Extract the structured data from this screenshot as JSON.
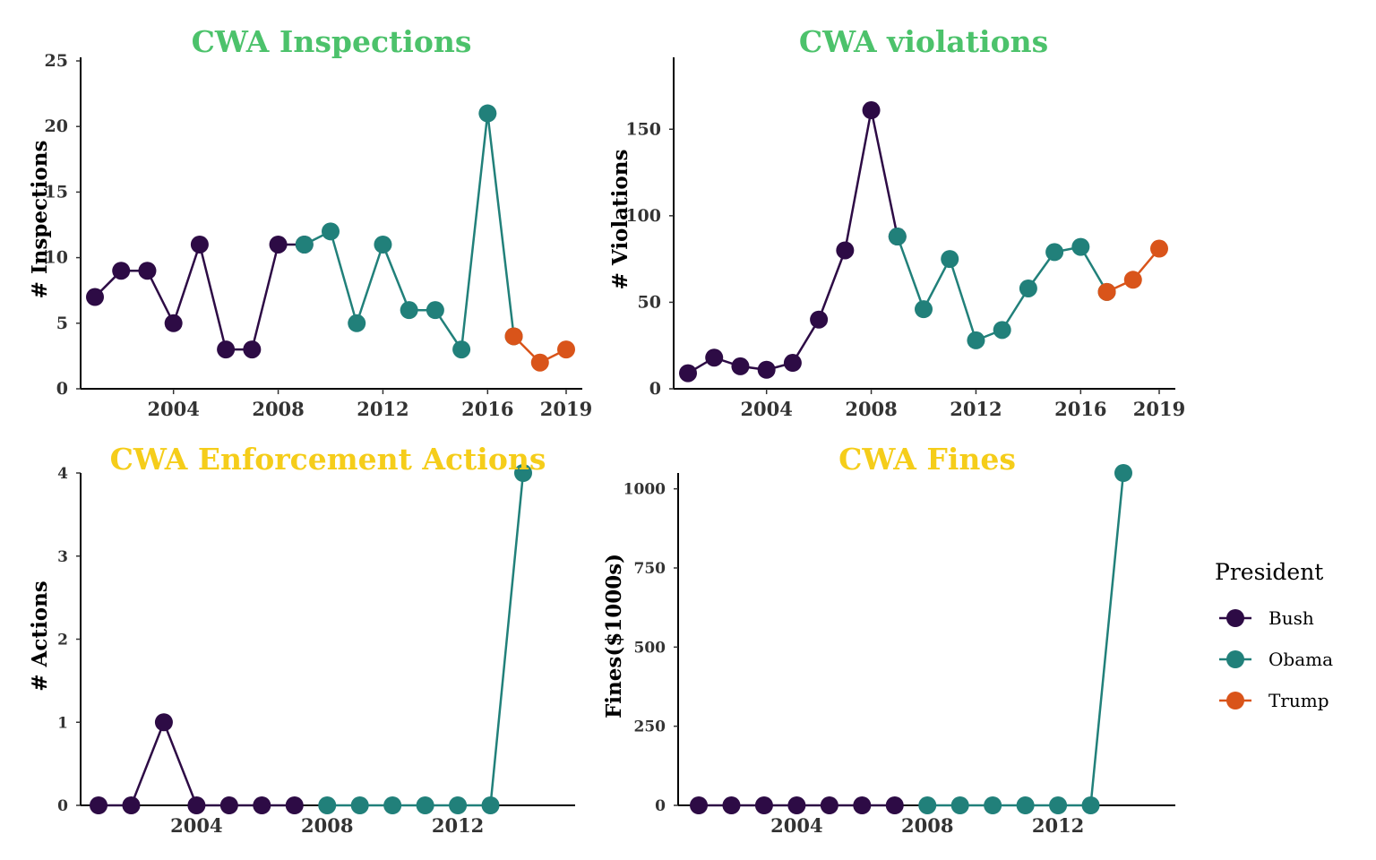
{
  "colors": {
    "Bush": "#2d0b45",
    "Obama": "#21807a",
    "Trump": "#d9541a"
  },
  "legend": {
    "title": "President",
    "items": [
      "Bush",
      "Obama",
      "Trump"
    ]
  },
  "chart_data": [
    {
      "type": "line",
      "title": "CWA Inspections",
      "title_color": "#4cc26b",
      "xlabel": "",
      "ylabel": "# Inspections",
      "xlim": [
        2001,
        2019
      ],
      "ylim": [
        0,
        25
      ],
      "xticks": [
        2004,
        2008,
        2012,
        2016,
        2019
      ],
      "yticks": [
        0,
        5,
        10,
        15,
        20,
        25
      ],
      "series": [
        {
          "name": "Bush",
          "x": [
            2001,
            2002,
            2003,
            2004,
            2005,
            2006,
            2007,
            2008,
            2009
          ],
          "y": [
            7,
            9,
            9,
            5,
            11,
            3,
            3,
            11,
            11
          ]
        },
        {
          "name": "Obama",
          "x": [
            2009,
            2010,
            2011,
            2012,
            2013,
            2014,
            2015,
            2016,
            2017
          ],
          "y": [
            11,
            12,
            5,
            11,
            6,
            6,
            3,
            21,
            4
          ]
        },
        {
          "name": "Trump",
          "x": [
            2017,
            2018,
            2019
          ],
          "y": [
            4,
            2,
            3
          ]
        }
      ]
    },
    {
      "type": "line",
      "title": "CWA violations",
      "title_color": "#4cc26b",
      "xlabel": "",
      "ylabel": "# Violations",
      "xlim": [
        2001,
        2019
      ],
      "ylim": [
        0,
        190
      ],
      "xticks": [
        2004,
        2008,
        2012,
        2016,
        2019
      ],
      "yticks": [
        0,
        50,
        100,
        150
      ],
      "series": [
        {
          "name": "Bush",
          "x": [
            2001,
            2002,
            2003,
            2004,
            2005,
            2006,
            2007,
            2008,
            2009
          ],
          "y": [
            9,
            18,
            13,
            11,
            15,
            40,
            80,
            161,
            88
          ]
        },
        {
          "name": "Obama",
          "x": [
            2009,
            2010,
            2011,
            2012,
            2013,
            2014,
            2015,
            2016,
            2017
          ],
          "y": [
            88,
            46,
            75,
            28,
            34,
            58,
            79,
            82,
            56
          ]
        },
        {
          "name": "Trump",
          "x": [
            2017,
            2018,
            2019
          ],
          "y": [
            56,
            63,
            81
          ]
        }
      ]
    },
    {
      "type": "line",
      "title": "CWA Enforcement Actions",
      "title_color": "#f5cd1a",
      "xlabel": "",
      "ylabel": "# Actions",
      "xlim": [
        2001,
        2014
      ],
      "ylim": [
        0,
        4
      ],
      "xticks": [
        2004,
        2008,
        2012
      ],
      "yticks": [
        0,
        1,
        2,
        3,
        4
      ],
      "series": [
        {
          "name": "Bush",
          "x": [
            2001,
            2002,
            2003,
            2004,
            2005,
            2006,
            2007
          ],
          "y": [
            0,
            0,
            1,
            0,
            0,
            0,
            0
          ]
        },
        {
          "name": "Obama",
          "x": [
            2008,
            2009,
            2010,
            2011,
            2012,
            2013,
            2014
          ],
          "y": [
            0,
            0,
            0,
            0,
            0,
            0,
            4
          ]
        }
      ]
    },
    {
      "type": "line",
      "title": "CWA Fines",
      "title_color": "#f5cd1a",
      "xlabel": "",
      "ylabel": "Fines($1000s)",
      "xlim": [
        2001,
        2014
      ],
      "ylim": [
        0,
        1050
      ],
      "xticks": [
        2004,
        2008,
        2012
      ],
      "yticks": [
        0,
        250,
        500,
        750,
        1000
      ],
      "series": [
        {
          "name": "Bush",
          "x": [
            2001,
            2002,
            2003,
            2004,
            2005,
            2006,
            2007
          ],
          "y": [
            0,
            0,
            0,
            0,
            0,
            0,
            0
          ]
        },
        {
          "name": "Obama",
          "x": [
            2008,
            2009,
            2010,
            2011,
            2012,
            2013,
            2014
          ],
          "y": [
            0,
            0,
            0,
            0,
            0,
            0,
            1050
          ]
        }
      ]
    }
  ]
}
